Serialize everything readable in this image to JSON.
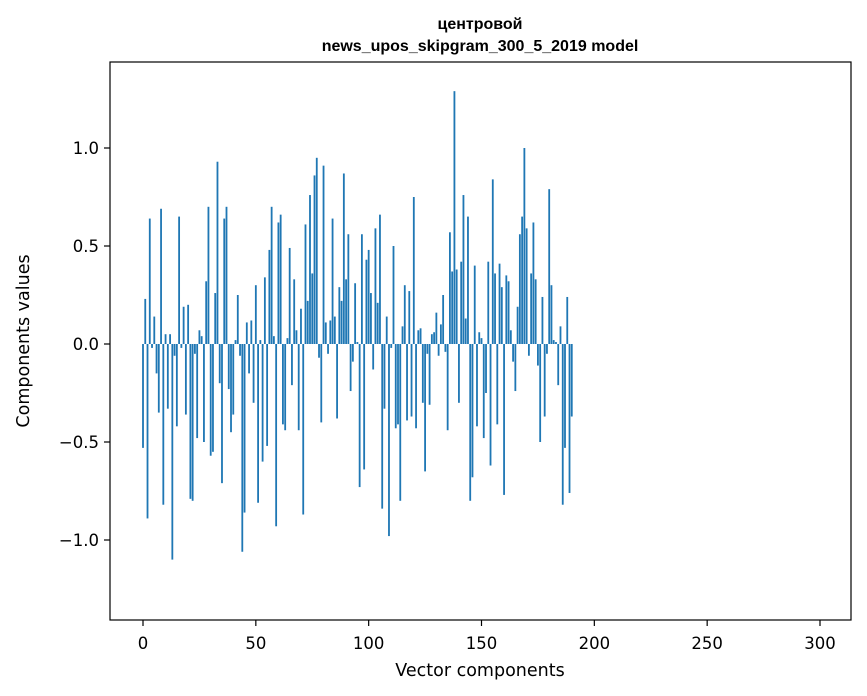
{
  "chart_data": {
    "type": "bar",
    "title_line1": "центровой",
    "title_line2": "news_upos_skipgram_300_5_2019 model",
    "xlabel": "Vector components",
    "ylabel": "Components values",
    "xlim": [
      -15,
      315
    ],
    "ylim": [
      -1.4,
      1.45
    ],
    "xticks": [
      0,
      50,
      100,
      150,
      200,
      250,
      300
    ],
    "xtick_labels": [
      "0",
      "50",
      "100",
      "150",
      "200",
      "250",
      "300"
    ],
    "yticks": [
      -1.0,
      -0.5,
      0.0,
      0.5,
      1.0
    ],
    "ytick_labels": [
      "−1.0",
      "−0.5",
      "0.0",
      "0.5",
      "1.0"
    ],
    "bar_color": "#1f77b4",
    "values": [
      -0.53,
      0.23,
      -0.89,
      0.64,
      -0.02,
      0.14,
      -0.15,
      -0.35,
      0.69,
      -0.82,
      0.05,
      -0.33,
      0.05,
      -1.1,
      -0.06,
      -0.42,
      0.65,
      -0.02,
      0.19,
      -0.36,
      0.2,
      -0.79,
      -0.8,
      -0.05,
      -0.48,
      0.07,
      0.04,
      -0.5,
      0.32,
      0.7,
      -0.57,
      -0.55,
      0.26,
      0.93,
      -0.2,
      -0.71,
      0.64,
      0.7,
      -0.23,
      -0.45,
      -0.36,
      0.02,
      0.25,
      -0.06,
      -1.06,
      -0.86,
      0.11,
      -0.15,
      0.12,
      -0.3,
      0.3,
      -0.81,
      0.02,
      -0.6,
      0.34,
      -0.52,
      0.48,
      0.7,
      0.04,
      -0.93,
      0.62,
      0.66,
      -0.41,
      -0.44,
      0.03,
      0.49,
      -0.21,
      0.33,
      0.07,
      -0.44,
      0.18,
      -0.87,
      0.61,
      0.22,
      0.76,
      0.36,
      0.86,
      0.95,
      -0.07,
      -0.4,
      0.91,
      0.11,
      -0.05,
      0.12,
      0.64,
      0.14,
      -0.38,
      0.29,
      0.22,
      0.87,
      0.33,
      0.56,
      -0.24,
      -0.09,
      0.31,
      0.01,
      -0.73,
      0.56,
      -0.64,
      0.43,
      0.48,
      0.26,
      -0.13,
      0.59,
      0.21,
      0.66,
      -0.84,
      -0.33,
      0.14,
      -0.98,
      -0.02,
      0.5,
      -0.43,
      -0.41,
      -0.8,
      0.09,
      0.3,
      -0.39,
      0.27,
      -0.37,
      0.75,
      -0.43,
      0.07,
      0.08,
      -0.3,
      -0.65,
      -0.05,
      -0.31,
      0.05,
      0.06,
      0.16,
      -0.06,
      0.1,
      0.25,
      -0.04,
      -0.44,
      0.57,
      0.37,
      1.29,
      0.38,
      -0.3,
      0.42,
      0.76,
      0.13,
      0.65,
      -0.8,
      -0.68,
      0.4,
      -0.42,
      0.06,
      0.03,
      -0.48,
      -0.25,
      0.42,
      -0.62,
      0.84,
      0.36,
      -0.41,
      0.41,
      0.29,
      -0.77,
      0.35,
      0.32,
      0.07,
      -0.09,
      -0.24,
      0.19,
      0.56,
      0.65,
      1.0,
      0.59,
      -0.06,
      0.36,
      0.62,
      0.33,
      -0.11,
      -0.5,
      0.24,
      -0.37,
      -0.05,
      0.79,
      0.3,
      0.02,
      0.01,
      -0.21,
      0.09,
      -0.82,
      -0.53,
      0.24,
      -0.76,
      -0.37
    ],
    "values_note_removed": true
  }
}
